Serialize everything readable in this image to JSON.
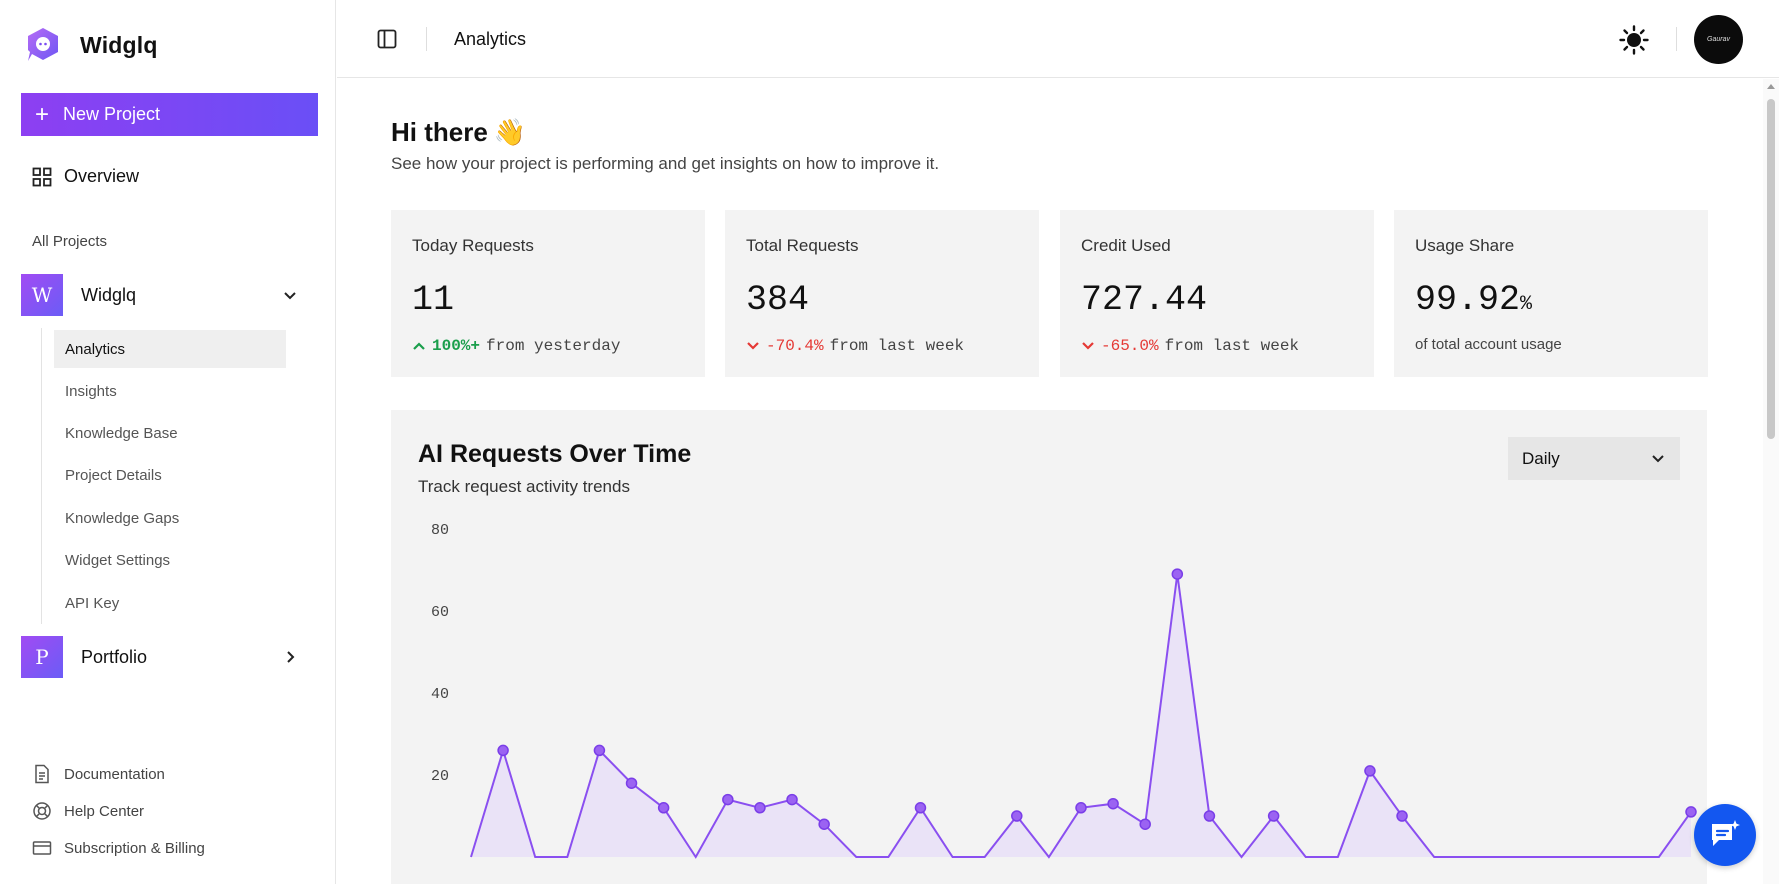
{
  "brand": {
    "name": "Widglq"
  },
  "sidebar": {
    "new_project_label": "New Project",
    "overview_label": "Overview",
    "all_projects_label": "All Projects",
    "projects": [
      {
        "initial": "W",
        "name": "Widglq",
        "expanded": true
      },
      {
        "initial": "P",
        "name": "Portfolio",
        "expanded": false
      }
    ],
    "subnav": [
      {
        "label": "Analytics",
        "active": true
      },
      {
        "label": "Insights",
        "active": false
      },
      {
        "label": "Knowledge Base",
        "active": false
      },
      {
        "label": "Project Details",
        "active": false
      },
      {
        "label": "Knowledge Gaps",
        "active": false
      },
      {
        "label": "Widget Settings",
        "active": false
      },
      {
        "label": "API Key",
        "active": false
      }
    ],
    "footer": [
      {
        "label": "Documentation",
        "icon": "document-icon"
      },
      {
        "label": "Help Center",
        "icon": "lifebuoy-icon"
      },
      {
        "label": "Subscription & Billing",
        "icon": "credit-card-icon"
      }
    ]
  },
  "header": {
    "title": "Analytics",
    "user_avatar_text": "Gaurav"
  },
  "main": {
    "greeting": "Hi there",
    "greeting_emoji": "👋",
    "subtitle": "See how your project is performing and get insights on how to improve it."
  },
  "stats": [
    {
      "label": "Today Requests",
      "value": "11",
      "delta": "100%+",
      "delta_dir": "up",
      "delta_suffix": "from yesterday"
    },
    {
      "label": "Total Requests",
      "value": "384",
      "delta": "-70.4%",
      "delta_dir": "down",
      "delta_suffix": "from last week"
    },
    {
      "label": "Credit Used",
      "value": "727.44",
      "delta": "-65.0%",
      "delta_dir": "down",
      "delta_suffix": "from last week"
    },
    {
      "label": "Usage Share",
      "value": "99.92",
      "value_unit": "%",
      "note": "of total account usage"
    }
  ],
  "chart_section": {
    "title": "AI Requests Over Time",
    "subtitle": "Track request activity trends",
    "range_selected": "Daily"
  },
  "chart_data": {
    "type": "area",
    "title": "AI Requests Over Time",
    "ylim": [
      0,
      80
    ],
    "y_ticks": [
      80,
      60,
      40,
      20
    ],
    "grid": false,
    "series": [
      {
        "values": [
          0,
          26,
          0,
          0,
          26,
          18,
          12,
          0,
          14,
          12,
          14,
          8,
          0,
          0,
          12,
          0,
          0,
          10,
          0,
          12,
          13,
          8,
          69,
          10,
          0,
          10,
          0,
          0,
          21,
          10,
          0,
          0,
          0,
          0,
          0,
          0,
          0,
          0,
          11
        ]
      }
    ],
    "colors": {
      "line": "#8a4ff0",
      "fill": "#e7def8",
      "point": "#9b63f2"
    }
  },
  "colors": {
    "accent": "#7b45f4",
    "up": "#1a9e4b",
    "down": "#e53935",
    "fab": "#1357f0"
  }
}
